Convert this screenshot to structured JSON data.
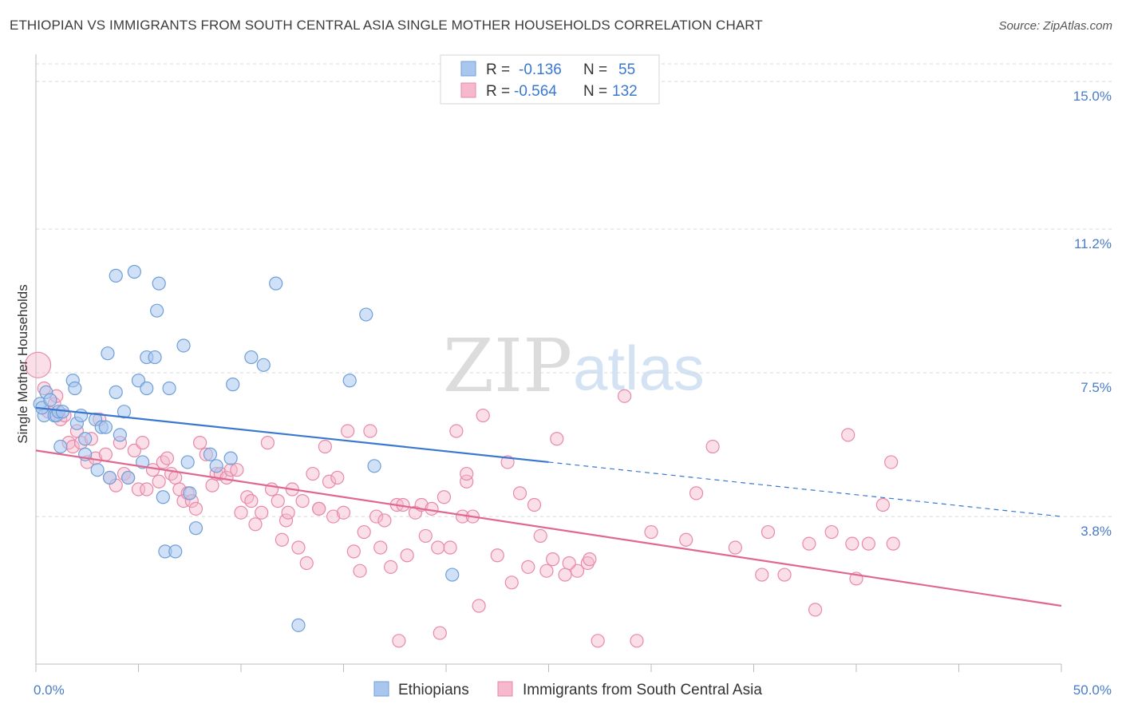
{
  "header": {
    "title": "ETHIOPIAN VS IMMIGRANTS FROM SOUTH CENTRAL ASIA SINGLE MOTHER HOUSEHOLDS CORRELATION CHART",
    "source": "Source: ZipAtlas.com"
  },
  "watermark": {
    "zip": "ZIP",
    "atlas": "atlas"
  },
  "legend_top": [
    {
      "r_label": "R =",
      "r_value": "-0.136",
      "n_label": "N =",
      "n_value": "55"
    },
    {
      "r_label": "R =",
      "r_value": "-0.564",
      "n_label": "N =",
      "n_value": "132"
    }
  ],
  "colors": {
    "blue_fill": "#a9c7ee",
    "blue_stroke": "#6f9fd8",
    "blue_line": "#3a78d0",
    "pink_fill": "#f5b8cc",
    "pink_stroke": "#e889a8",
    "pink_line": "#e0688f",
    "tick_blue": "#4a7cc7",
    "grid": "#d8d8d8"
  },
  "chart_data": {
    "type": "scatter",
    "title": "ETHIOPIAN VS IMMIGRANTS FROM SOUTH CENTRAL ASIA SINGLE MOTHER HOUSEHOLDS CORRELATION CHART",
    "xlabel": "",
    "ylabel": "Single Mother Households",
    "xlim": [
      0,
      50
    ],
    "ylim": [
      0,
      15.7
    ],
    "x_tick_labels": [
      "0.0%",
      "50.0%"
    ],
    "y_ticks": [
      3.8,
      7.5,
      11.2,
      15.0
    ],
    "y_tick_labels": [
      "3.8%",
      "7.5%",
      "11.2%",
      "15.0%"
    ],
    "grid": true,
    "legend_position": "bottom",
    "series": [
      {
        "name": "Ethiopians",
        "color": "#a9c7ee",
        "trend": {
          "x_solid": [
            0,
            25
          ],
          "y_solid": [
            6.6,
            5.2
          ],
          "x_dash": [
            25,
            50
          ],
          "y_dash": [
            5.2,
            3.8
          ]
        },
        "points": [
          [
            0.2,
            6.7
          ],
          [
            0.4,
            6.4
          ],
          [
            0.3,
            6.6
          ],
          [
            0.5,
            7.0
          ],
          [
            0.7,
            6.8
          ],
          [
            0.9,
            6.4
          ],
          [
            1.0,
            6.4
          ],
          [
            1.1,
            6.5
          ],
          [
            1.3,
            6.5
          ],
          [
            1.2,
            5.6
          ],
          [
            1.8,
            7.3
          ],
          [
            1.9,
            7.1
          ],
          [
            2.0,
            6.2
          ],
          [
            2.2,
            6.4
          ],
          [
            2.4,
            5.8
          ],
          [
            2.4,
            5.4
          ],
          [
            2.9,
            6.3
          ],
          [
            3.0,
            5.0
          ],
          [
            3.2,
            6.1
          ],
          [
            3.4,
            6.1
          ],
          [
            3.6,
            4.8
          ],
          [
            3.9,
            7.0
          ],
          [
            4.1,
            5.9
          ],
          [
            4.3,
            6.5
          ],
          [
            4.5,
            4.8
          ],
          [
            3.5,
            8.0
          ],
          [
            3.9,
            10.0
          ],
          [
            4.8,
            10.1
          ],
          [
            5.2,
            5.2
          ],
          [
            5.0,
            7.3
          ],
          [
            5.4,
            7.1
          ],
          [
            5.4,
            7.9
          ],
          [
            5.8,
            7.9
          ],
          [
            5.9,
            9.1
          ],
          [
            6.0,
            9.8
          ],
          [
            6.2,
            4.3
          ],
          [
            6.5,
            7.1
          ],
          [
            6.3,
            2.9
          ],
          [
            6.8,
            2.9
          ],
          [
            7.2,
            8.2
          ],
          [
            7.4,
            5.2
          ],
          [
            7.5,
            4.4
          ],
          [
            7.8,
            3.5
          ],
          [
            8.5,
            5.4
          ],
          [
            8.8,
            5.1
          ],
          [
            9.5,
            5.3
          ],
          [
            9.6,
            7.2
          ],
          [
            10.5,
            7.9
          ],
          [
            11.1,
            7.7
          ],
          [
            11.7,
            9.8
          ],
          [
            12.8,
            1.0
          ],
          [
            15.3,
            7.3
          ],
          [
            16.1,
            9.0
          ],
          [
            20.3,
            2.3
          ],
          [
            16.5,
            5.1
          ]
        ]
      },
      {
        "name": "Immigrants from South Central Asia",
        "color": "#f5b8cc",
        "trend": {
          "x_solid": [
            0,
            50
          ],
          "y_solid": [
            5.5,
            1.5
          ]
        },
        "points": [
          [
            0.1,
            7.7
          ],
          [
            0.4,
            7.1
          ],
          [
            0.6,
            6.5
          ],
          [
            0.9,
            6.7
          ],
          [
            1.0,
            6.9
          ],
          [
            1.2,
            6.3
          ],
          [
            1.4,
            6.4
          ],
          [
            1.6,
            5.7
          ],
          [
            1.8,
            5.6
          ],
          [
            2.0,
            6.0
          ],
          [
            2.2,
            5.7
          ],
          [
            2.5,
            5.2
          ],
          [
            2.7,
            5.8
          ],
          [
            2.9,
            5.3
          ],
          [
            3.1,
            6.3
          ],
          [
            3.4,
            5.4
          ],
          [
            3.6,
            4.8
          ],
          [
            3.9,
            4.6
          ],
          [
            4.1,
            5.7
          ],
          [
            4.3,
            4.9
          ],
          [
            4.5,
            4.8
          ],
          [
            4.8,
            5.5
          ],
          [
            5.0,
            4.5
          ],
          [
            5.2,
            5.7
          ],
          [
            5.4,
            4.5
          ],
          [
            5.7,
            5.0
          ],
          [
            6.0,
            4.7
          ],
          [
            6.2,
            5.2
          ],
          [
            6.4,
            5.3
          ],
          [
            6.6,
            4.9
          ],
          [
            6.8,
            4.8
          ],
          [
            7.0,
            4.5
          ],
          [
            7.2,
            4.2
          ],
          [
            7.4,
            4.4
          ],
          [
            7.6,
            4.2
          ],
          [
            7.8,
            4.0
          ],
          [
            8.0,
            5.7
          ],
          [
            8.3,
            5.4
          ],
          [
            8.6,
            4.6
          ],
          [
            8.8,
            4.9
          ],
          [
            9.0,
            4.9
          ],
          [
            9.3,
            4.8
          ],
          [
            9.5,
            5.0
          ],
          [
            9.8,
            5.0
          ],
          [
            10.0,
            3.9
          ],
          [
            10.3,
            4.3
          ],
          [
            10.5,
            4.2
          ],
          [
            10.7,
            3.6
          ],
          [
            11.0,
            3.9
          ],
          [
            11.3,
            5.7
          ],
          [
            11.5,
            4.5
          ],
          [
            11.8,
            4.2
          ],
          [
            12.0,
            3.2
          ],
          [
            12.2,
            3.7
          ],
          [
            12.5,
            4.5
          ],
          [
            12.8,
            3.0
          ],
          [
            13.0,
            4.2
          ],
          [
            13.2,
            2.6
          ],
          [
            13.5,
            4.9
          ],
          [
            13.8,
            4.0
          ],
          [
            14.1,
            5.6
          ],
          [
            14.3,
            4.7
          ],
          [
            14.5,
            3.8
          ],
          [
            14.7,
            4.8
          ],
          [
            15.0,
            3.9
          ],
          [
            15.2,
            6.0
          ],
          [
            15.5,
            2.9
          ],
          [
            15.8,
            2.4
          ],
          [
            16.0,
            3.4
          ],
          [
            16.3,
            6.0
          ],
          [
            16.6,
            3.8
          ],
          [
            16.8,
            3.0
          ],
          [
            17.0,
            3.7
          ],
          [
            17.3,
            2.5
          ],
          [
            17.6,
            4.1
          ],
          [
            17.9,
            4.1
          ],
          [
            18.1,
            2.8
          ],
          [
            18.5,
            3.9
          ],
          [
            18.8,
            4.1
          ],
          [
            19.0,
            3.3
          ],
          [
            19.3,
            4.0
          ],
          [
            19.6,
            3.0
          ],
          [
            19.9,
            4.3
          ],
          [
            20.2,
            3.0
          ],
          [
            20.5,
            6.0
          ],
          [
            20.8,
            3.8
          ],
          [
            21.0,
            4.7
          ],
          [
            21.3,
            3.8
          ],
          [
            21.6,
            1.5
          ],
          [
            21.8,
            6.4
          ],
          [
            22.5,
            2.8
          ],
          [
            23.2,
            2.1
          ],
          [
            23.6,
            4.4
          ],
          [
            24.0,
            2.5
          ],
          [
            24.3,
            4.1
          ],
          [
            24.6,
            3.3
          ],
          [
            24.9,
            2.4
          ],
          [
            25.2,
            2.7
          ],
          [
            25.4,
            5.8
          ],
          [
            25.8,
            2.3
          ],
          [
            26.4,
            2.4
          ],
          [
            26.9,
            2.6
          ],
          [
            26.0,
            2.6
          ],
          [
            27.0,
            2.7
          ],
          [
            23.0,
            5.2
          ],
          [
            28.7,
            6.9
          ],
          [
            30.0,
            3.4
          ],
          [
            31.7,
            3.2
          ],
          [
            33.0,
            5.6
          ],
          [
            32.2,
            4.4
          ],
          [
            34.1,
            3.0
          ],
          [
            35.4,
            2.3
          ],
          [
            35.7,
            3.4
          ],
          [
            36.5,
            2.3
          ],
          [
            37.7,
            3.1
          ],
          [
            38.8,
            3.4
          ],
          [
            39.8,
            3.1
          ],
          [
            38.0,
            1.4
          ],
          [
            39.6,
            5.9
          ],
          [
            40.0,
            2.2
          ],
          [
            40.6,
            3.1
          ],
          [
            41.7,
            5.2
          ],
          [
            41.8,
            3.1
          ],
          [
            17.7,
            0.6
          ],
          [
            19.7,
            0.8
          ],
          [
            29.3,
            0.6
          ],
          [
            27.4,
            0.6
          ],
          [
            41.3,
            4.1
          ],
          [
            21.0,
            4.9
          ],
          [
            13.8,
            4.0
          ],
          [
            12.3,
            3.9
          ]
        ]
      }
    ]
  },
  "bottom_legend": [
    {
      "label": "Ethiopians"
    },
    {
      "label": "Immigrants from South Central Asia"
    }
  ]
}
